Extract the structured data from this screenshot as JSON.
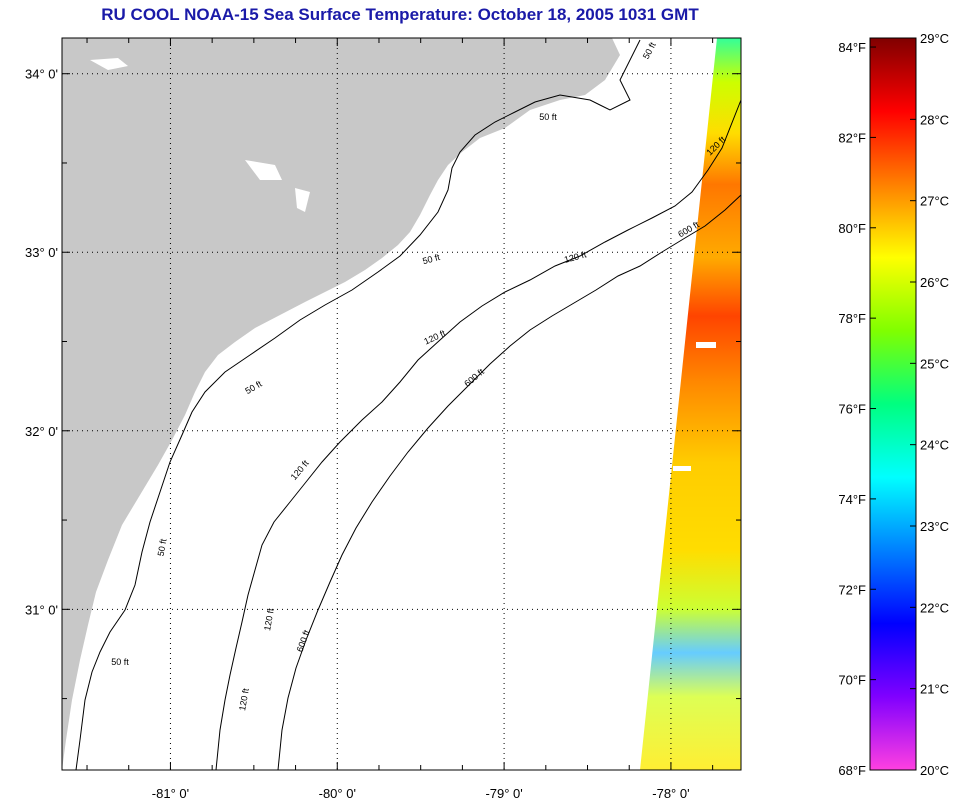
{
  "title": "RU COOL  NOAA-15  Sea Surface Temperature:  October 18, 2005 1031 GMT",
  "map": {
    "lon_range": [
      -81.65,
      -77.58
    ],
    "lat_range": [
      30.1,
      34.2
    ],
    "lat_ticks": [
      {
        "value": 34,
        "label": "34° 0'"
      },
      {
        "value": 33,
        "label": "33° 0'"
      },
      {
        "value": 32,
        "label": "32° 0'"
      },
      {
        "value": 31,
        "label": "31° 0'"
      }
    ],
    "lon_ticks": [
      {
        "value": -81,
        "label": "-81° 0'"
      },
      {
        "value": -80,
        "label": "-80° 0'"
      },
      {
        "value": -79,
        "label": "-79° 0'"
      },
      {
        "value": -78,
        "label": "-78° 0'"
      }
    ],
    "grid": "dotted",
    "colors": {
      "land": "#c8c8c8",
      "ocean": "#ffffff",
      "contour": "#000000"
    },
    "contour_labels": [
      {
        "text": "50 ft"
      },
      {
        "text": "50 ft"
      },
      {
        "text": "50 ft"
      },
      {
        "text": "50 ft"
      },
      {
        "text": "50 ft"
      },
      {
        "text": "50 ft"
      },
      {
        "text": "120 ft"
      },
      {
        "text": "120 ft"
      },
      {
        "text": "120 ft"
      },
      {
        "text": "120 ft"
      },
      {
        "text": "120 ft"
      },
      {
        "text": "120 ft"
      },
      {
        "text": "600 ft"
      },
      {
        "text": "600 ft"
      },
      {
        "text": "600 ft"
      }
    ]
  },
  "colorbar": {
    "range_c": [
      20,
      29
    ],
    "stops": [
      "#ff40e0",
      "#8000ff",
      "#0000ff",
      "#0080ff",
      "#00ffff",
      "#00ff80",
      "#80ff00",
      "#ffff00",
      "#ff8000",
      "#ff0000",
      "#800000"
    ],
    "fahrenheit_labels": [
      "84°F",
      "82°F",
      "80°F",
      "78°F",
      "76°F",
      "74°F",
      "72°F",
      "70°F",
      "68°F"
    ],
    "celsius_labels": [
      "29°C",
      "28°C",
      "27°C",
      "26°C",
      "25°C",
      "24°C",
      "23°C",
      "22°C",
      "21°C",
      "20°C"
    ]
  }
}
